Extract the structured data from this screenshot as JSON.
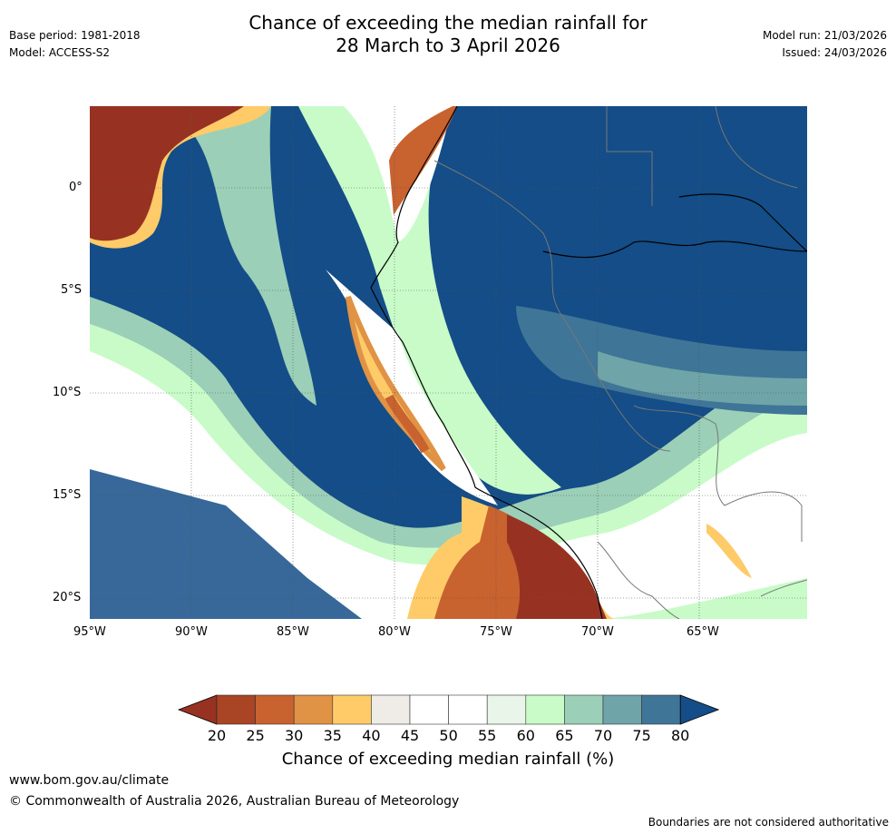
{
  "header": {
    "base_period": "Base period: 1981-2018",
    "model": "Model: ACCESS-S2",
    "title_line1": "Chance of exceeding the median rainfall for",
    "title_line2": "28 March to 3 April 2026",
    "model_run": "Model run: 21/03/2026",
    "issued": "Issued: 24/03/2026"
  },
  "map": {
    "lat_labels": [
      "0°",
      "5°S",
      "10°S",
      "15°S",
      "20°S"
    ],
    "lon_labels": [
      "95°W",
      "90°W",
      "85°W",
      "80°W",
      "75°W",
      "70°W",
      "65°W"
    ]
  },
  "colorbar": {
    "title": "Chance of exceeding median rainfall (%)",
    "ticks": [
      "20",
      "25",
      "30",
      "35",
      "40",
      "45",
      "50",
      "55",
      "60",
      "65",
      "70",
      "75",
      "80"
    ],
    "colors": [
      "#a94424",
      "#c8622f",
      "#e09245",
      "#fecb68",
      "#efece7",
      "#ffffff",
      "#ffffff",
      "#e9f5e8",
      "#c8fbc8",
      "#9bcfb7",
      "#6fa5a8",
      "#3f7597"
    ],
    "under_color": "#973222",
    "over_color": "#144d87"
  },
  "footer": {
    "url": "www.bom.gov.au/climate",
    "copyright": "© Commonwealth of Australia 2026, Australian Bureau of Meteorology",
    "disclaimer": "Boundaries are not considered authoritative"
  }
}
